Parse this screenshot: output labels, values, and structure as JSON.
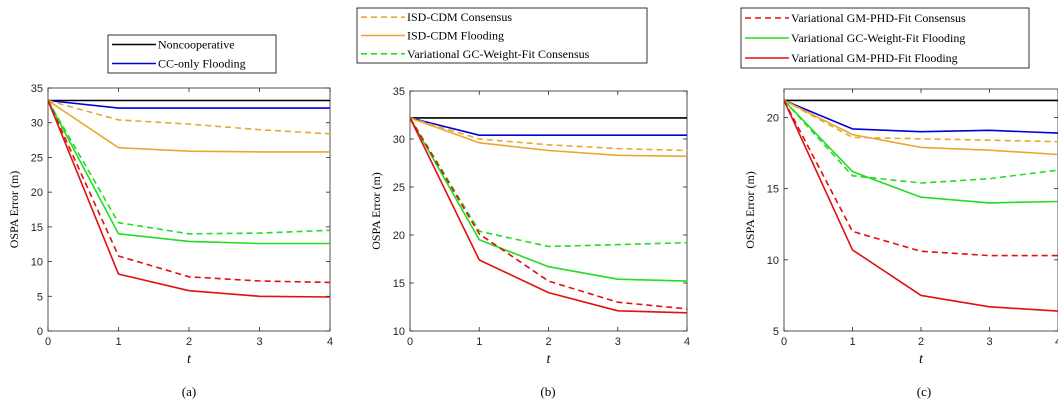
{
  "colors": {
    "Noncooperative": "#000000",
    "CC-only Flooding": "#0000d9",
    "ISD-CDM Consensus": "#e8a830",
    "ISD-CDM Flooding": "#e8a830",
    "Variational GC-Weight-Fit Consensus": "#22dd22",
    "Variational GC-Weight-Fit Flooding": "#22dd22",
    "Variational GM-PHD-Fit Consensus": "#e01010",
    "Variational GM-PHD-Fit Flooding": "#e01010"
  },
  "dashed": {
    "Noncooperative": false,
    "CC-only Flooding": false,
    "ISD-CDM Consensus": true,
    "ISD-CDM Flooding": false,
    "Variational GC-Weight-Fit Consensus": true,
    "Variational GC-Weight-Fit Flooding": false,
    "Variational GM-PHD-Fit Consensus": true,
    "Variational GM-PHD-Fit Flooding": false
  },
  "chart_data": [
    {
      "type": "line",
      "caption": "(a)",
      "xlabel": "t",
      "ylabel": "OSPA Error (m)",
      "xlim": [
        0,
        4
      ],
      "ylim": [
        0,
        35
      ],
      "xticks": [
        0,
        1,
        2,
        3,
        4
      ],
      "yticks": [
        0,
        5,
        10,
        15,
        20,
        25,
        30,
        35
      ],
      "x": [
        0,
        1,
        2,
        3,
        4
      ],
      "legend": [
        "Noncooperative",
        "CC-only Flooding"
      ],
      "series": [
        {
          "name": "Noncooperative",
          "values": [
            33.2,
            33.2,
            33.2,
            33.2,
            33.2
          ]
        },
        {
          "name": "CC-only Flooding",
          "values": [
            33.2,
            32.1,
            32.1,
            32.1,
            32.1
          ]
        },
        {
          "name": "ISD-CDM Consensus",
          "values": [
            33.2,
            30.4,
            29.8,
            29.0,
            28.4
          ]
        },
        {
          "name": "ISD-CDM Flooding",
          "values": [
            33.2,
            26.4,
            25.9,
            25.8,
            25.8
          ]
        },
        {
          "name": "Variational GC-Weight-Fit Consensus",
          "values": [
            33.2,
            15.6,
            14.0,
            14.1,
            14.5
          ]
        },
        {
          "name": "Variational GC-Weight-Fit Flooding",
          "values": [
            33.2,
            14.0,
            12.9,
            12.6,
            12.6
          ]
        },
        {
          "name": "Variational GM-PHD-Fit Consensus",
          "values": [
            33.2,
            10.8,
            7.8,
            7.2,
            7.0
          ]
        },
        {
          "name": "Variational GM-PHD-Fit Flooding",
          "values": [
            33.2,
            8.2,
            5.8,
            5.0,
            4.9
          ]
        }
      ]
    },
    {
      "type": "line",
      "caption": "(b)",
      "xlabel": "t",
      "ylabel": "OSPA Error (m)",
      "xlim": [
        0,
        4
      ],
      "ylim": [
        10,
        35
      ],
      "xticks": [
        0,
        1,
        2,
        3,
        4
      ],
      "yticks": [
        10,
        15,
        20,
        25,
        30,
        35
      ],
      "x": [
        0,
        1,
        2,
        3,
        4
      ],
      "legend": [
        "ISD-CDM Consensus",
        "ISD-CDM Flooding",
        "Variational GC-Weight-Fit Consensus"
      ],
      "series": [
        {
          "name": "Noncooperative",
          "values": [
            32.2,
            32.2,
            32.2,
            32.2,
            32.2
          ]
        },
        {
          "name": "CC-only Flooding",
          "values": [
            32.2,
            30.4,
            30.4,
            30.4,
            30.4
          ]
        },
        {
          "name": "ISD-CDM Consensus",
          "values": [
            32.2,
            30.0,
            29.4,
            29.0,
            28.8
          ]
        },
        {
          "name": "ISD-CDM Flooding",
          "values": [
            32.2,
            29.6,
            28.8,
            28.3,
            28.2
          ]
        },
        {
          "name": "Variational GC-Weight-Fit Consensus",
          "values": [
            32.2,
            20.4,
            18.8,
            19.0,
            19.2
          ]
        },
        {
          "name": "Variational GC-Weight-Fit Flooding",
          "values": [
            32.2,
            19.5,
            16.7,
            15.4,
            15.2
          ]
        },
        {
          "name": "Variational GM-PHD-Fit Consensus",
          "values": [
            32.2,
            20.1,
            15.2,
            13.0,
            12.3
          ]
        },
        {
          "name": "Variational GM-PHD-Fit Flooding",
          "values": [
            32.2,
            17.4,
            14.0,
            12.1,
            11.9
          ]
        }
      ]
    },
    {
      "type": "line",
      "caption": "(c)",
      "xlabel": "t",
      "ylabel": "OSPA Error (m)",
      "xlim": [
        0,
        4
      ],
      "ylim": [
        5,
        22
      ],
      "xticks": [
        0,
        1,
        2,
        3,
        4
      ],
      "yticks": [
        5,
        10,
        15,
        20
      ],
      "x": [
        0,
        1,
        2,
        3,
        4
      ],
      "legend": [
        "Variational GM-PHD-Fit Consensus",
        "Variational GC-Weight-Fit Flooding",
        "Variational GM-PHD-Fit Flooding"
      ],
      "series": [
        {
          "name": "Noncooperative",
          "values": [
            21.2,
            21.2,
            21.2,
            21.2,
            21.2
          ]
        },
        {
          "name": "CC-only Flooding",
          "values": [
            21.2,
            19.2,
            19.0,
            19.1,
            18.9
          ]
        },
        {
          "name": "ISD-CDM Consensus",
          "values": [
            21.2,
            18.6,
            18.5,
            18.4,
            18.3
          ]
        },
        {
          "name": "ISD-CDM Flooding",
          "values": [
            21.2,
            18.8,
            17.9,
            17.7,
            17.4
          ]
        },
        {
          "name": "Variational GC-Weight-Fit Consensus",
          "values": [
            21.2,
            15.9,
            15.4,
            15.7,
            16.3
          ]
        },
        {
          "name": "Variational GC-Weight-Fit Flooding",
          "values": [
            21.2,
            16.2,
            14.4,
            14.0,
            14.1
          ]
        },
        {
          "name": "Variational GM-PHD-Fit Consensus",
          "values": [
            21.2,
            12.0,
            10.6,
            10.3,
            10.3
          ]
        },
        {
          "name": "Variational GM-PHD-Fit Flooding",
          "values": [
            21.2,
            10.7,
            7.5,
            6.7,
            6.4
          ]
        }
      ]
    }
  ]
}
